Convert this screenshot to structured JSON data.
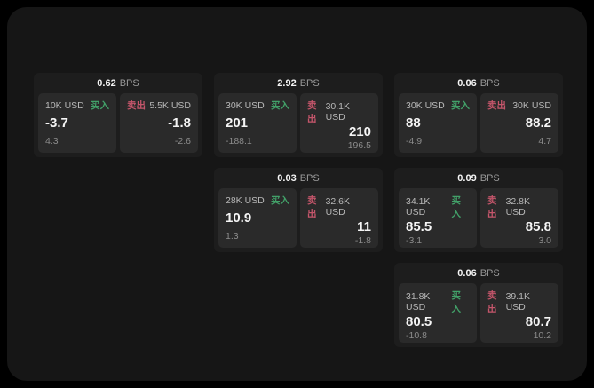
{
  "page": {
    "background": "#000000",
    "frame_background": "#161616"
  },
  "labels": {
    "bps_unit": "BPS",
    "buy": "买入",
    "sell": "卖出"
  },
  "colors": {
    "buy_green": "#42a169",
    "sell_red": "#c5566b",
    "card_bg": "#1d1d1d",
    "panel_bg": "#2a2a2a"
  },
  "cards": [
    {
      "row": 1,
      "col": 1,
      "bps": "0.62",
      "buy": {
        "amount": "10K USD",
        "price": "-3.7",
        "delta": "4.3"
      },
      "sell": {
        "amount": "5.5K USD",
        "price": "-1.8",
        "delta": "-2.6"
      }
    },
    {
      "row": 1,
      "col": 2,
      "bps": "2.92",
      "buy": {
        "amount": "30K USD",
        "price": "201",
        "delta": "-188.1"
      },
      "sell": {
        "amount": "30.1K USD",
        "price": "210",
        "delta": "196.5"
      }
    },
    {
      "row": 1,
      "col": 3,
      "bps": "0.06",
      "buy": {
        "amount": "30K USD",
        "price": "88",
        "delta": "-4.9"
      },
      "sell": {
        "amount": "30K USD",
        "price": "88.2",
        "delta": "4.7"
      }
    },
    {
      "row": 2,
      "col": 2,
      "bps": "0.03",
      "buy": {
        "amount": "28K USD",
        "price": "10.9",
        "delta": "1.3"
      },
      "sell": {
        "amount": "32.6K USD",
        "price": "11",
        "delta": "-1.8"
      }
    },
    {
      "row": 2,
      "col": 3,
      "bps": "0.09",
      "buy": {
        "amount": "34.1K USD",
        "price": "85.5",
        "delta": "-3.1"
      },
      "sell": {
        "amount": "32.8K USD",
        "price": "85.8",
        "delta": "3.0"
      }
    },
    {
      "row": 3,
      "col": 3,
      "bps": "0.06",
      "buy": {
        "amount": "31.8K USD",
        "price": "80.5",
        "delta": "-10.8"
      },
      "sell": {
        "amount": "39.1K USD",
        "price": "80.7",
        "delta": "10.2"
      }
    }
  ]
}
